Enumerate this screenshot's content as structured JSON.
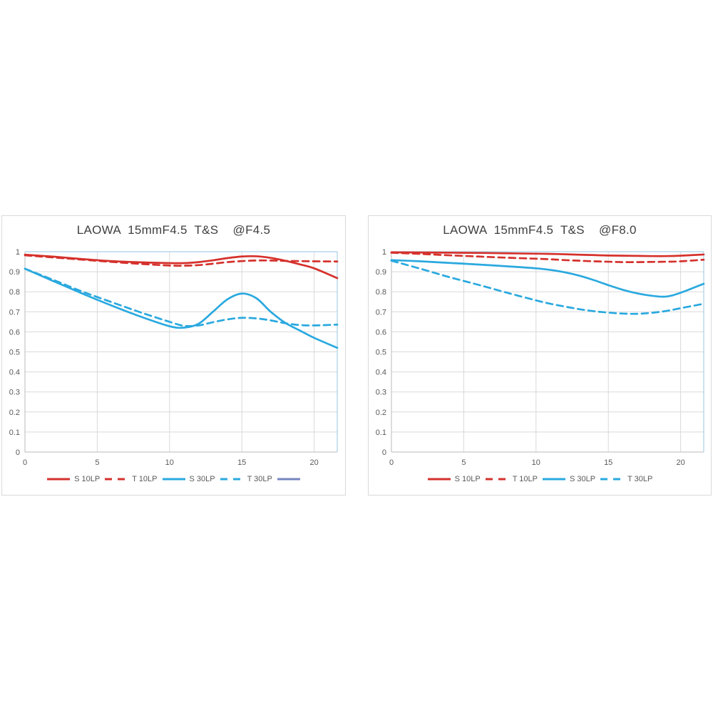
{
  "colors": {
    "red": "#d5312c",
    "cyan": "#2aa9df",
    "blue_extra": "#7585be",
    "grid": "#d9d9d9",
    "axis_gray": "#c6c6c6",
    "plot_border_blue": "#a9cfe5",
    "tick_text": "#595959",
    "title_text": "#3f3f3f",
    "panel_border": "#d9d9d9",
    "background": "#ffffff"
  },
  "chart_data": [
    {
      "type": "line",
      "title": "LAOWA  15mmF4.5  T&S    @F4.5",
      "xlabel": "",
      "ylabel": "",
      "xlim": [
        0,
        21.6
      ],
      "ylim": [
        0,
        1
      ],
      "grid": true,
      "x_ticks": [
        0,
        5,
        10,
        15,
        20
      ],
      "y_ticks": [
        0,
        0.1,
        0.2,
        0.3,
        0.4,
        0.5,
        0.6,
        0.7,
        0.8,
        0.9,
        1
      ],
      "y_tick_labels": [
        "0",
        "0.1",
        "0.2",
        "0.3",
        "0.4",
        "0.5",
        "0.6",
        "0.7",
        "0.8",
        "0.9",
        "1"
      ],
      "x_tick_labels": [
        "0",
        "5",
        "10",
        "15",
        "20"
      ],
      "x": [
        0,
        2,
        4,
        6,
        8,
        10,
        11,
        12,
        13,
        14,
        15,
        16,
        17,
        18,
        19,
        20,
        21.6
      ],
      "series": [
        {
          "name": "S 10LP",
          "color": "red",
          "style": "solid",
          "values": [
            0.985,
            0.975,
            0.963,
            0.953,
            0.947,
            0.943,
            0.943,
            0.948,
            0.957,
            0.968,
            0.976,
            0.977,
            0.969,
            0.955,
            0.937,
            0.917,
            0.868
          ]
        },
        {
          "name": "T 10LP",
          "color": "red",
          "style": "dashed",
          "values": [
            0.982,
            0.971,
            0.96,
            0.949,
            0.939,
            0.931,
            0.93,
            0.933,
            0.94,
            0.948,
            0.953,
            0.956,
            0.956,
            0.954,
            0.953,
            0.952,
            0.951
          ]
        },
        {
          "name": "S 30LP",
          "color": "cyan",
          "style": "solid",
          "values": [
            0.915,
            0.852,
            0.79,
            0.731,
            0.676,
            0.628,
            0.621,
            0.64,
            0.7,
            0.762,
            0.791,
            0.768,
            0.7,
            0.645,
            0.607,
            0.57,
            0.52
          ]
        },
        {
          "name": "T 30LP",
          "color": "cyan",
          "style": "dashed",
          "values": [
            0.915,
            0.858,
            0.8,
            0.748,
            0.697,
            0.65,
            0.63,
            0.632,
            0.648,
            0.662,
            0.67,
            0.667,
            0.657,
            0.643,
            0.634,
            0.632,
            0.636
          ]
        }
      ],
      "legend": [
        {
          "label": "S 10LP",
          "color": "red",
          "style": "solid"
        },
        {
          "label": "T 10LP",
          "color": "red",
          "style": "dashed"
        },
        {
          "label": "S 30LP",
          "color": "cyan",
          "style": "solid"
        },
        {
          "label": "T 30LP",
          "color": "cyan",
          "style": "dashed"
        },
        {
          "label": "",
          "color": "blue_extra",
          "style": "solid"
        }
      ],
      "legend_position": "bottom"
    },
    {
      "type": "line",
      "title": "LAOWA  15mmF4.5  T&S    @F8.0",
      "xlabel": "",
      "ylabel": "",
      "xlim": [
        0,
        21.6
      ],
      "ylim": [
        0,
        1
      ],
      "grid": true,
      "x_ticks": [
        0,
        5,
        10,
        15,
        20
      ],
      "y_ticks": [
        0,
        0.1,
        0.2,
        0.3,
        0.4,
        0.5,
        0.6,
        0.7,
        0.8,
        0.9,
        1
      ],
      "y_tick_labels": [
        "0",
        "0.1",
        "0.2",
        "0.3",
        "0.4",
        "0.5",
        "0.6",
        "0.7",
        "0.8",
        "0.9",
        "1"
      ],
      "x_tick_labels": [
        "0",
        "5",
        "10",
        "15",
        "20"
      ],
      "x": [
        0,
        2,
        4,
        6,
        8,
        10,
        11,
        12,
        13,
        14,
        15,
        16,
        17,
        18,
        19,
        20,
        21.6
      ],
      "series": [
        {
          "name": "S 10LP",
          "color": "red",
          "style": "solid",
          "values": [
            0.997,
            0.996,
            0.995,
            0.994,
            0.992,
            0.99,
            0.989,
            0.987,
            0.985,
            0.983,
            0.981,
            0.98,
            0.979,
            0.978,
            0.978,
            0.98,
            0.986
          ]
        },
        {
          "name": "T 10LP",
          "color": "red",
          "style": "dashed",
          "values": [
            0.995,
            0.989,
            0.982,
            0.976,
            0.97,
            0.965,
            0.962,
            0.958,
            0.955,
            0.952,
            0.95,
            0.948,
            0.948,
            0.949,
            0.95,
            0.952,
            0.96
          ]
        },
        {
          "name": "S 30LP",
          "color": "cyan",
          "style": "solid",
          "values": [
            0.958,
            0.952,
            0.944,
            0.936,
            0.927,
            0.917,
            0.909,
            0.897,
            0.88,
            0.858,
            0.833,
            0.81,
            0.792,
            0.78,
            0.776,
            0.795,
            0.84
          ]
        },
        {
          "name": "T 30LP",
          "color": "cyan",
          "style": "dashed",
          "values": [
            0.955,
            0.915,
            0.873,
            0.835,
            0.795,
            0.757,
            0.74,
            0.726,
            0.713,
            0.703,
            0.696,
            0.691,
            0.69,
            0.695,
            0.704,
            0.718,
            0.74
          ]
        }
      ],
      "legend": [
        {
          "label": "S 10LP",
          "color": "red",
          "style": "solid"
        },
        {
          "label": "T 10LP",
          "color": "red",
          "style": "dashed"
        },
        {
          "label": "S 30LP",
          "color": "cyan",
          "style": "solid"
        },
        {
          "label": "T 30LP",
          "color": "cyan",
          "style": "dashed"
        }
      ],
      "legend_position": "bottom"
    }
  ]
}
